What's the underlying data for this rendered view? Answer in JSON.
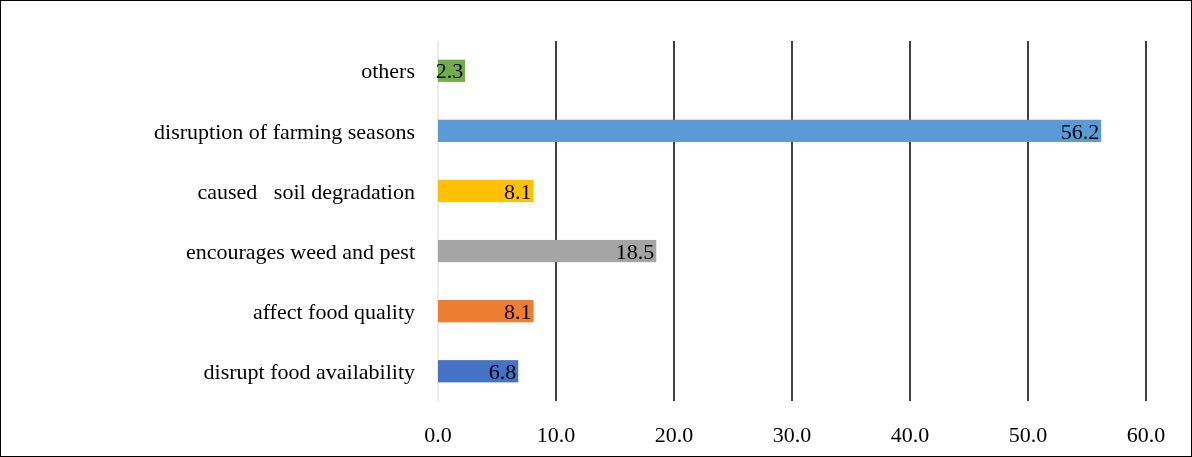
{
  "chart_data": {
    "type": "bar",
    "orientation": "horizontal",
    "categories": [
      "others",
      "disruption of farming seasons",
      "caused   soil degradation",
      "encourages weed and pest",
      "affect food quality",
      "disrupt food availability"
    ],
    "values": [
      2.3,
      56.2,
      8.1,
      18.5,
      8.1,
      6.8
    ],
    "colors": [
      "#70ad47",
      "#5b9bd5",
      "#ffc000",
      "#a5a5a5",
      "#ed7d31",
      "#4472c4"
    ],
    "xlim": [
      0,
      60
    ],
    "xticks": [
      {
        "value": 0,
        "label": "0.0"
      },
      {
        "value": 10,
        "label": "10.0"
      },
      {
        "value": 20,
        "label": "20.0"
      },
      {
        "value": 30,
        "label": "30.0"
      },
      {
        "value": 40,
        "label": "40.0"
      },
      {
        "value": 50,
        "label": "50.0"
      },
      {
        "value": 60,
        "label": "60.0"
      }
    ],
    "grid": "x",
    "data_labels": true
  }
}
